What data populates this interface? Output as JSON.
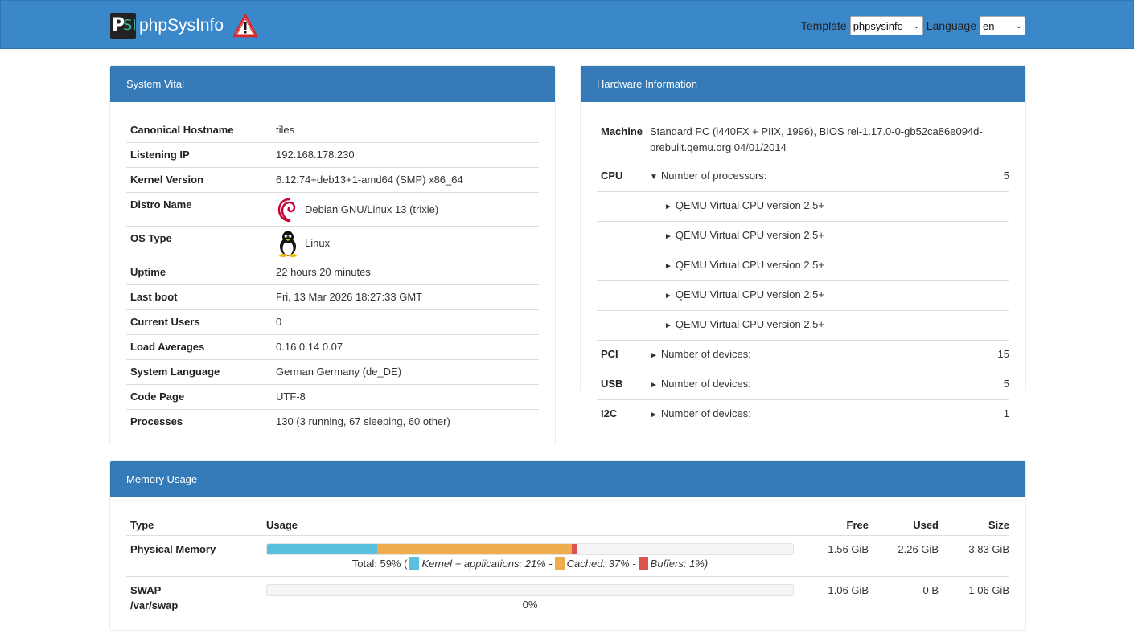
{
  "header": {
    "brand": "phpSysInfo",
    "logo_text_p": "P",
    "logo_text_si": "SI",
    "template_label": "Template",
    "template_value": "phpsysinfo",
    "language_label": "Language",
    "language_value": "en"
  },
  "vital": {
    "title": "System Vital",
    "rows": [
      {
        "label": "Canonical Hostname",
        "value": "tiles"
      },
      {
        "label": "Listening IP",
        "value": "192.168.178.230"
      },
      {
        "label": "Kernel Version",
        "value": "6.12.74+deb13+1-amd64 (SMP) x86_64"
      },
      {
        "label": "Distro Name",
        "value": "Debian GNU/Linux 13 (trixie)"
      },
      {
        "label": "OS Type",
        "value": "Linux"
      },
      {
        "label": "Uptime",
        "value": "22 hours 20 minutes"
      },
      {
        "label": "Last boot",
        "value": "Fri, 13 Mar 2026 18:27:33 GMT"
      },
      {
        "label": "Current Users",
        "value": "0"
      },
      {
        "label": "Load Averages",
        "value": "0.16 0.14 0.07"
      },
      {
        "label": "System Language",
        "value": "German Germany (de_DE)"
      },
      {
        "label": "Code Page",
        "value": "UTF-8"
      },
      {
        "label": "Processes",
        "value": "130 (3 running, 67 sleeping, 60 other)"
      }
    ]
  },
  "hardware": {
    "title": "Hardware Information",
    "machine_label": "Machine",
    "machine_value": "Standard PC (i440FX + PIIX, 1996), BIOS rel-1.17.0-0-gb52ca86e094d-prebuilt.qemu.org 04/01/2014",
    "cpu_label": "CPU",
    "cpu_text": "Number of processors:",
    "cpu_count": "5",
    "cpus": [
      "QEMU Virtual CPU version 2.5+",
      "QEMU Virtual CPU version 2.5+",
      "QEMU Virtual CPU version 2.5+",
      "QEMU Virtual CPU version 2.5+",
      "QEMU Virtual CPU version 2.5+"
    ],
    "pci_label": "PCI",
    "pci_text": "Number of devices:",
    "pci_count": "15",
    "usb_label": "USB",
    "usb_text": "Number of devices:",
    "usb_count": "5",
    "i2c_label": "I2C",
    "i2c_text": "Number of devices:",
    "i2c_count": "1"
  },
  "memory": {
    "title": "Memory Usage",
    "col_type": "Type",
    "col_usage": "Usage",
    "col_free": "Free",
    "col_used": "Used",
    "col_size": "Size",
    "physical": {
      "label": "Physical Memory",
      "free": "1.56 GiB",
      "used": "2.26 GiB",
      "size": "3.83 GiB",
      "kernel_pct": 21,
      "cached_pct": 37,
      "buffers_pct": 1,
      "total_text": "Total: 59% (",
      "kernel_text": "Kernel + applications: 21% -",
      "cached_text": "Cached: 37% -",
      "buffers_text": "Buffers: 1%)"
    },
    "swap": {
      "label": "SWAP",
      "sublabel": "/var/swap",
      "free": "1.06 GiB",
      "used": "0 B",
      "size": "1.06 GiB",
      "usage_pct": 0,
      "usage_text": "0%"
    },
    "colors": {
      "kernel": "#5bc0de",
      "cached": "#f0ad4e",
      "buffers": "#d9534f"
    }
  }
}
